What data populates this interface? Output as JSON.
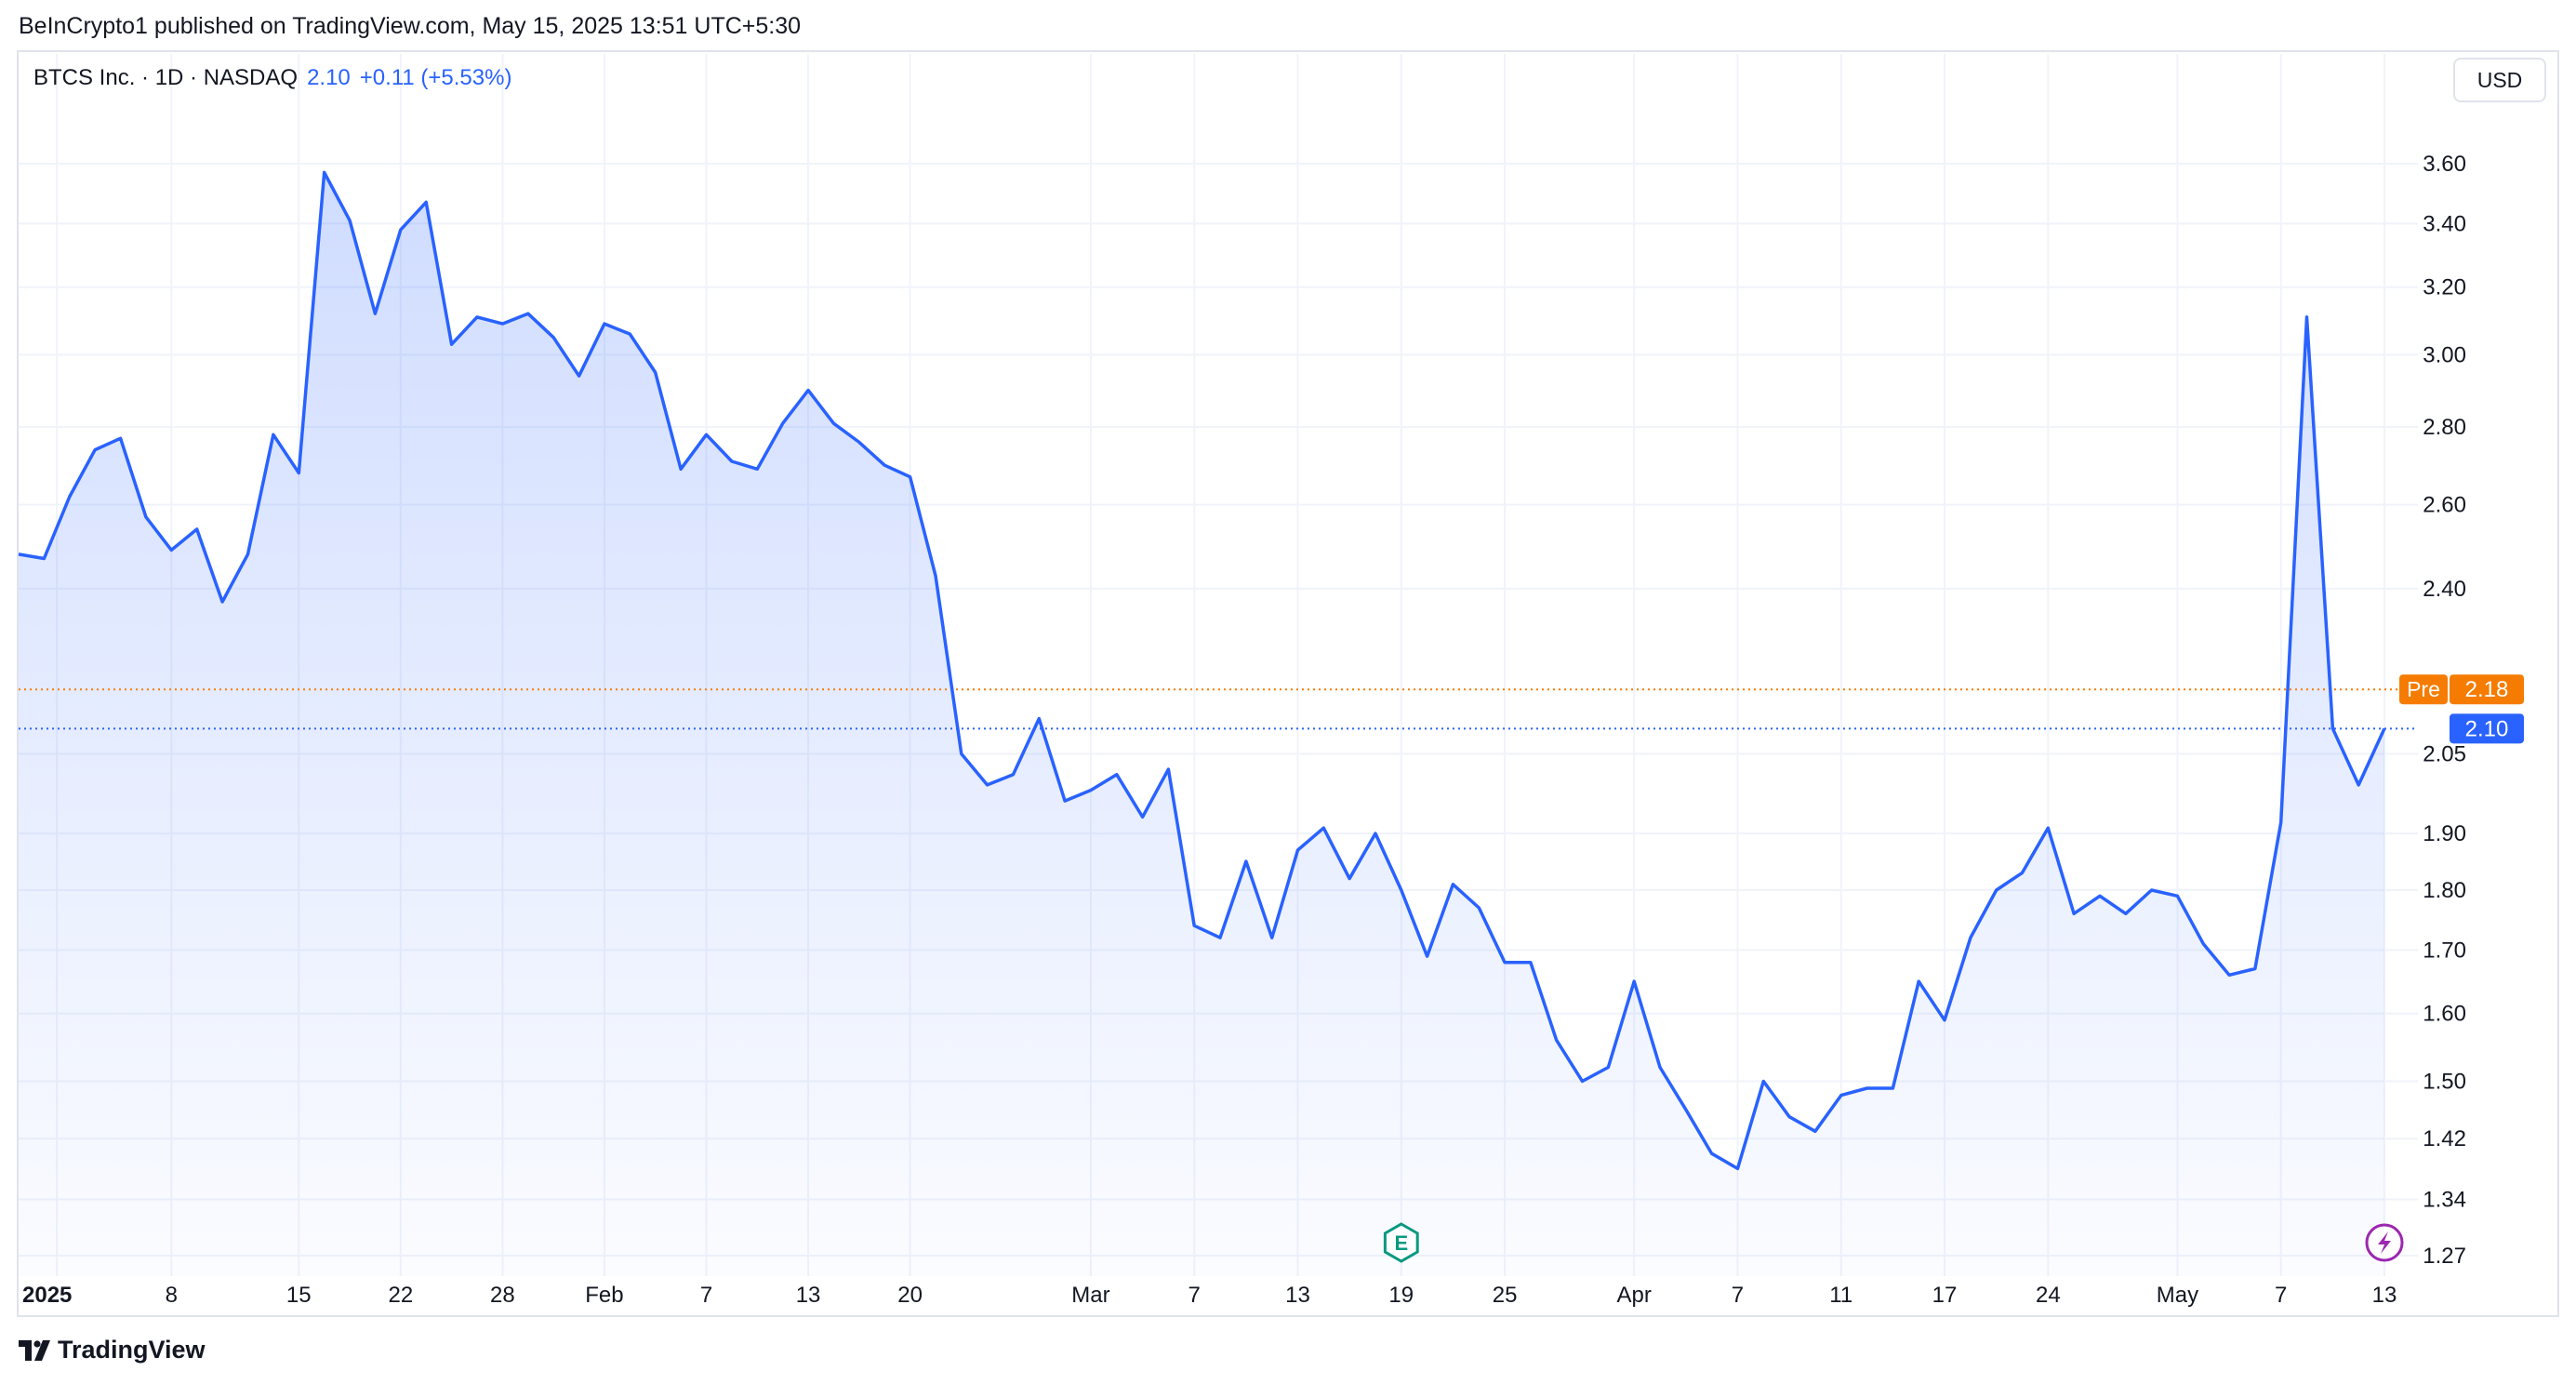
{
  "header": {
    "publisher_line": "BeInCrypto1 published on TradingView.com, May 15, 2025 13:51 UTC+5:30",
    "symbol_label": "BTCS Inc. · 1D · NASDAQ",
    "last_price": "2.10",
    "change": "+0.11 (+5.53%)"
  },
  "currency_button": "USD",
  "footer": {
    "logo_text": "TradingView"
  },
  "colors": {
    "line": "#2962ff",
    "pre_market": "#f57c00",
    "grid": "#f0f3fa",
    "axis_text": "#131722"
  },
  "markers": {
    "earnings_letter": "E",
    "dividend_icon": "lightning-icon"
  },
  "chart_data": {
    "type": "area",
    "title": "BTCS Inc. · 1D · NASDAQ",
    "y_axis": {
      "scale": "log",
      "ticks": [
        3.6,
        3.4,
        3.2,
        3.0,
        2.8,
        2.6,
        2.4,
        2.05,
        1.9,
        1.8,
        1.7,
        1.6,
        1.5,
        1.42,
        1.34,
        1.27
      ],
      "tick_labels": [
        "3.60",
        "3.40",
        "3.20",
        "3.00",
        "2.80",
        "2.60",
        "2.40",
        "2.05",
        "1.90",
        "1.80",
        "1.70",
        "1.60",
        "1.50",
        "1.42",
        "1.34",
        "1.27"
      ]
    },
    "x_axis": {
      "tick_labels": [
        {
          "label": "2025",
          "date": "2025-01-01",
          "bold": true
        },
        {
          "label": "8",
          "date": "2025-01-08"
        },
        {
          "label": "15",
          "date": "2025-01-15"
        },
        {
          "label": "22",
          "date": "2025-01-22"
        },
        {
          "label": "28",
          "date": "2025-01-28"
        },
        {
          "label": "Feb",
          "date": "2025-02-03"
        },
        {
          "label": "7",
          "date": "2025-02-07"
        },
        {
          "label": "13",
          "date": "2025-02-13"
        },
        {
          "label": "20",
          "date": "2025-02-20"
        },
        {
          "label": "Mar",
          "date": "2025-03-03"
        },
        {
          "label": "7",
          "date": "2025-03-07"
        },
        {
          "label": "13",
          "date": "2025-03-13"
        },
        {
          "label": "19",
          "date": "2025-03-19"
        },
        {
          "label": "25",
          "date": "2025-03-25"
        },
        {
          "label": "Apr",
          "date": "2025-04-01"
        },
        {
          "label": "7",
          "date": "2025-04-07"
        },
        {
          "label": "11",
          "date": "2025-04-11"
        },
        {
          "label": "17",
          "date": "2025-04-17"
        },
        {
          "label": "24",
          "date": "2025-04-24"
        },
        {
          "label": "May",
          "date": "2025-05-01"
        },
        {
          "label": "7",
          "date": "2025-05-07"
        },
        {
          "label": "13",
          "date": "2025-05-13"
        }
      ]
    },
    "series": [
      {
        "name": "",
        "points": [
          [
            "2024-12-30",
            2.48
          ],
          [
            "2024-12-31",
            2.47
          ],
          [
            "2025-01-02",
            2.62
          ],
          [
            "2025-01-03",
            2.74
          ],
          [
            "2025-01-06",
            2.77
          ],
          [
            "2025-01-07",
            2.57
          ],
          [
            "2025-01-08",
            2.49
          ],
          [
            "2025-01-09",
            2.54
          ],
          [
            "2025-01-10",
            2.37
          ],
          [
            "2025-01-13",
            2.48
          ],
          [
            "2025-01-14",
            2.78
          ],
          [
            "2025-01-15",
            2.68
          ],
          [
            "2025-01-16",
            3.57
          ],
          [
            "2025-01-17",
            3.41
          ],
          [
            "2025-01-21",
            3.12
          ],
          [
            "2025-01-22",
            3.38
          ],
          [
            "2025-01-23",
            3.47
          ],
          [
            "2025-01-24",
            3.03
          ],
          [
            "2025-01-27",
            3.11
          ],
          [
            "2025-01-28",
            3.09
          ],
          [
            "2025-01-29",
            3.12
          ],
          [
            "2025-01-30",
            3.05
          ],
          [
            "2025-01-31",
            2.94
          ],
          [
            "2025-02-03",
            3.09
          ],
          [
            "2025-02-04",
            3.06
          ],
          [
            "2025-02-05",
            2.95
          ],
          [
            "2025-02-06",
            2.69
          ],
          [
            "2025-02-07",
            2.78
          ],
          [
            "2025-02-10",
            2.71
          ],
          [
            "2025-02-11",
            2.69
          ],
          [
            "2025-02-12",
            2.81
          ],
          [
            "2025-02-13",
            2.9
          ],
          [
            "2025-02-14",
            2.81
          ],
          [
            "2025-02-18",
            2.76
          ],
          [
            "2025-02-19",
            2.7
          ],
          [
            "2025-02-20",
            2.67
          ],
          [
            "2025-02-21",
            2.43
          ],
          [
            "2025-02-24",
            2.05
          ],
          [
            "2025-02-25",
            1.99
          ],
          [
            "2025-02-26",
            2.01
          ],
          [
            "2025-02-27",
            2.12
          ],
          [
            "2025-02-28",
            1.96
          ],
          [
            "2025-03-03",
            1.98
          ],
          [
            "2025-03-04",
            2.01
          ],
          [
            "2025-03-05",
            1.93
          ],
          [
            "2025-03-06",
            2.02
          ],
          [
            "2025-03-07",
            1.74
          ],
          [
            "2025-03-10",
            1.72
          ],
          [
            "2025-03-11",
            1.85
          ],
          [
            "2025-03-12",
            1.72
          ],
          [
            "2025-03-13",
            1.87
          ],
          [
            "2025-03-14",
            1.91
          ],
          [
            "2025-03-17",
            1.82
          ],
          [
            "2025-03-18",
            1.9
          ],
          [
            "2025-03-19",
            1.8
          ],
          [
            "2025-03-20",
            1.69
          ],
          [
            "2025-03-21",
            1.81
          ],
          [
            "2025-03-24",
            1.77
          ],
          [
            "2025-03-25",
            1.68
          ],
          [
            "2025-03-26",
            1.68
          ],
          [
            "2025-03-27",
            1.56
          ],
          [
            "2025-03-28",
            1.5
          ],
          [
            "2025-03-31",
            1.52
          ],
          [
            "2025-04-01",
            1.65
          ],
          [
            "2025-04-02",
            1.52
          ],
          [
            "2025-04-03",
            1.46
          ],
          [
            "2025-04-04",
            1.4
          ],
          [
            "2025-04-07",
            1.38
          ],
          [
            "2025-04-08",
            1.5
          ],
          [
            "2025-04-09",
            1.45
          ],
          [
            "2025-04-10",
            1.43
          ],
          [
            "2025-04-11",
            1.48
          ],
          [
            "2025-04-14",
            1.49
          ],
          [
            "2025-04-15",
            1.49
          ],
          [
            "2025-04-16",
            1.65
          ],
          [
            "2025-04-17",
            1.59
          ],
          [
            "2025-04-21",
            1.72
          ],
          [
            "2025-04-22",
            1.8
          ],
          [
            "2025-04-23",
            1.83
          ],
          [
            "2025-04-24",
            1.91
          ],
          [
            "2025-04-25",
            1.76
          ],
          [
            "2025-04-28",
            1.79
          ],
          [
            "2025-04-29",
            1.76
          ],
          [
            "2025-04-30",
            1.8
          ],
          [
            "2025-05-01",
            1.79
          ],
          [
            "2025-05-02",
            1.71
          ],
          [
            "2025-05-05",
            1.66
          ],
          [
            "2025-05-06",
            1.67
          ],
          [
            "2025-05-07",
            1.92
          ],
          [
            "2025-05-08",
            3.11
          ],
          [
            "2025-05-09",
            2.1
          ],
          [
            "2025-05-12",
            1.99
          ],
          [
            "2025-05-13",
            2.1
          ]
        ]
      }
    ],
    "price_labels": [
      {
        "tag": "Pre",
        "value": 2.18,
        "label": "2.18",
        "color": "#f57c00",
        "line": "dotted"
      },
      {
        "tag": "",
        "value": 2.1,
        "label": "2.10",
        "color": "#2962ff",
        "line": "dotted"
      }
    ],
    "events": [
      {
        "type": "earnings",
        "date": "2025-03-19",
        "label": "E"
      },
      {
        "type": "dividend",
        "date": "2025-05-13"
      }
    ],
    "grid": true
  }
}
